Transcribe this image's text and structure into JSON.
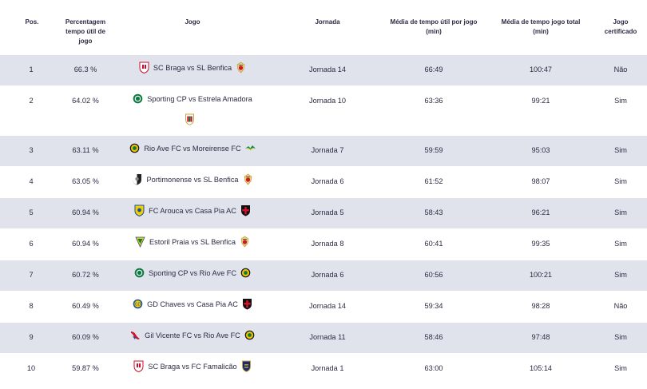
{
  "headers": {
    "pos": "Pos.",
    "pct": [
      "Percentagem",
      "tempo útil de",
      "jogo"
    ],
    "game": "Jogo",
    "round": "Jornada",
    "avg": [
      "Média de tempo útil por jogo",
      "(min)"
    ],
    "total": [
      "Média de tempo jogo total",
      "(min)"
    ],
    "cert": [
      "Jogo",
      "certificado"
    ]
  },
  "rows": [
    {
      "pos": "1",
      "pct": "66.3 %",
      "game": "SC Braga vs SL Benfica",
      "home_icon": "sc-braga-crest-icon",
      "away_icon": "sl-benfica-crest-icon",
      "round": "Jornada 14",
      "avg": "66:49",
      "total": "100:47",
      "cert": "Não"
    },
    {
      "pos": "2",
      "pct": "64.02 %",
      "game": "Sporting CP vs Estrela Amadora",
      "home_icon": "sporting-cp-crest-icon",
      "away_icon": "estrela-amadora-crest-icon",
      "round": "Jornada 10",
      "avg": "63:36",
      "total": "99:21",
      "cert": "Sim"
    },
    {
      "pos": "3",
      "pct": "63.11 %",
      "game": "Rio Ave FC vs Moreirense FC",
      "home_icon": "rio-ave-crest-icon",
      "away_icon": "moreirense-crest-icon",
      "round": "Jornada 7",
      "avg": "59:59",
      "total": "95:03",
      "cert": "Sim"
    },
    {
      "pos": "4",
      "pct": "63.05 %",
      "game": "Portimonense vs SL Benfica",
      "home_icon": "portimonense-crest-icon",
      "away_icon": "sl-benfica-crest-icon",
      "round": "Jornada 6",
      "avg": "61:52",
      "total": "98:07",
      "cert": "Sim"
    },
    {
      "pos": "5",
      "pct": "60.94 %",
      "game": "FC Arouca vs Casa Pia AC",
      "home_icon": "fc-arouca-crest-icon",
      "away_icon": "casa-pia-crest-icon",
      "round": "Jornada 5",
      "avg": "58:43",
      "total": "96:21",
      "cert": "Sim"
    },
    {
      "pos": "6",
      "pct": "60.94 %",
      "game": "Estoril Praia vs SL Benfica",
      "home_icon": "estoril-praia-crest-icon",
      "away_icon": "sl-benfica-crest-icon",
      "round": "Jornada 8",
      "avg": "60:41",
      "total": "99:35",
      "cert": "Sim"
    },
    {
      "pos": "7",
      "pct": "60.72 %",
      "game": "Sporting CP vs Rio Ave FC",
      "home_icon": "sporting-cp-crest-icon",
      "away_icon": "rio-ave-crest-icon",
      "round": "Jornada 6",
      "avg": "60:56",
      "total": "100:21",
      "cert": "Sim"
    },
    {
      "pos": "8",
      "pct": "60.49 %",
      "game": "GD Chaves vs Casa Pia AC",
      "home_icon": "gd-chaves-crest-icon",
      "away_icon": "casa-pia-crest-icon",
      "round": "Jornada 14",
      "avg": "59:34",
      "total": "98:28",
      "cert": "Não"
    },
    {
      "pos": "9",
      "pct": "60.09 %",
      "game": "Gil Vicente FC vs Rio Ave FC",
      "home_icon": "gil-vicente-crest-icon",
      "away_icon": "rio-ave-crest-icon",
      "round": "Jornada 11",
      "avg": "58:46",
      "total": "97:48",
      "cert": "Sim"
    },
    {
      "pos": "10",
      "pct": "59.87 %",
      "game": "SC Braga vs FC Famalicão",
      "home_icon": "sc-braga-crest-icon",
      "away_icon": "fc-famalicao-crest-icon",
      "round": "Jornada 1",
      "avg": "63:00",
      "total": "105:14",
      "cert": "Sim"
    }
  ],
  "colors": {
    "shaded_row": "#e1e3ec",
    "text": "#2b2b44"
  }
}
